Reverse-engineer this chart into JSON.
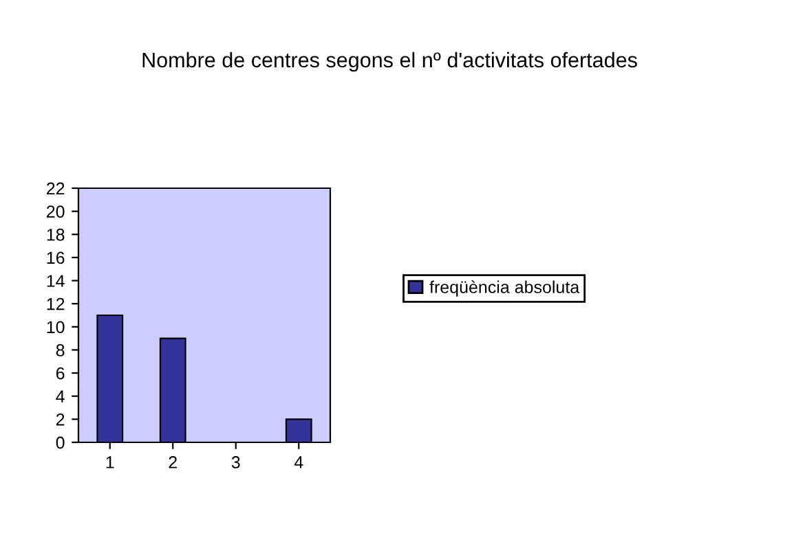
{
  "chart_data": {
    "type": "bar",
    "title": "Nombre de centres segons el nº d'activitats ofertades",
    "categories": [
      "1",
      "2",
      "3",
      "4"
    ],
    "series": [
      {
        "name": "freqüència absoluta",
        "color": "#333399",
        "values": [
          11,
          9,
          0,
          2
        ]
      }
    ],
    "ylim": [
      0,
      22
    ],
    "yticks": [
      0,
      2,
      4,
      6,
      8,
      10,
      12,
      14,
      16,
      18,
      20,
      22
    ],
    "grid": false,
    "legend": "right"
  }
}
